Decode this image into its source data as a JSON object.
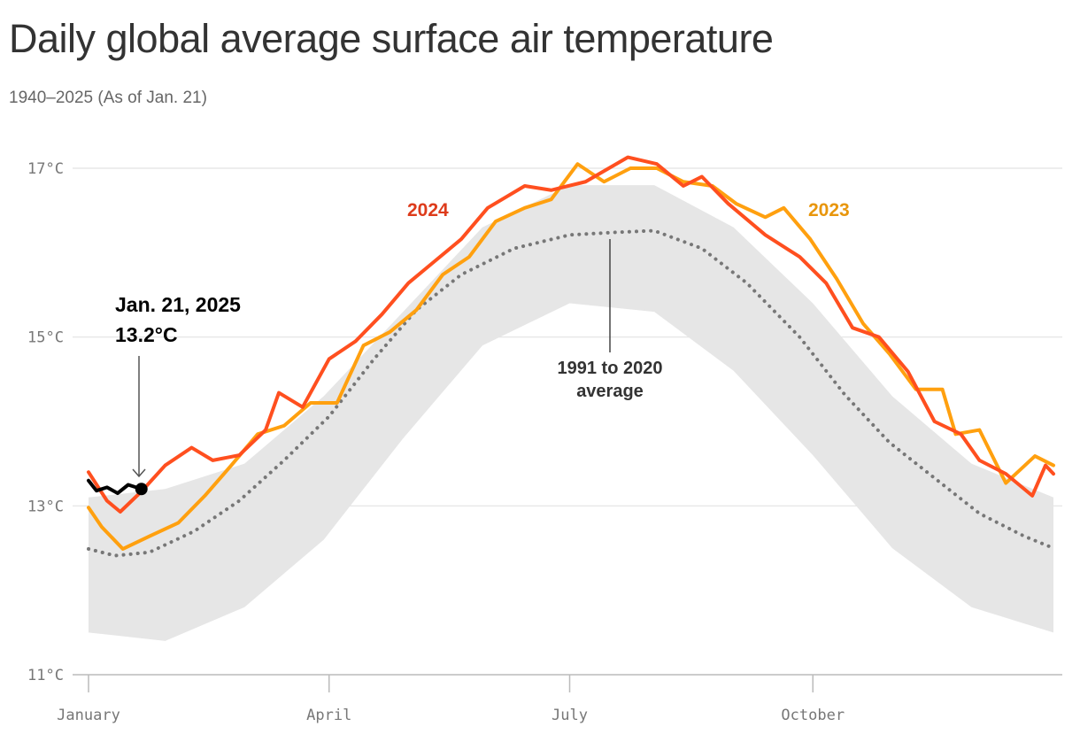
{
  "chart_data": {
    "type": "line",
    "title": "Daily global average surface air temperature",
    "subtitle": "1940–2025 (As of Jan. 21)",
    "xlabel": "",
    "ylabel": "",
    "x_unit": "day of year",
    "xlim": [
      1,
      366
    ],
    "ylim": [
      11,
      17
    ],
    "y_ticks": [
      {
        "v": 17,
        "label": "17°C"
      },
      {
        "v": 15,
        "label": "15°C"
      },
      {
        "v": 13,
        "label": "13°C"
      },
      {
        "v": 11,
        "label": "11°C"
      }
    ],
    "x_ticks": [
      {
        "v": 1,
        "label": "January"
      },
      {
        "v": 92,
        "label": "April"
      },
      {
        "v": 183,
        "label": "July"
      },
      {
        "v": 275,
        "label": "October"
      }
    ],
    "grid": true,
    "historical_band": {
      "color": "#e6e6e6",
      "x": [
        1,
        30,
        60,
        90,
        120,
        150,
        183,
        215,
        245,
        275,
        305,
        335,
        366
      ],
      "lower": [
        11.5,
        11.4,
        11.8,
        12.6,
        13.8,
        14.9,
        15.4,
        15.3,
        14.6,
        13.6,
        12.5,
        11.8,
        11.5
      ],
      "upper": [
        13.1,
        13.2,
        13.5,
        14.3,
        15.3,
        16.3,
        16.8,
        16.8,
        16.3,
        15.4,
        14.3,
        13.5,
        13.1
      ]
    },
    "series": [
      {
        "name": "1991 to 2020 average",
        "color": "#777777",
        "style": "dotted",
        "x": [
          1,
          11,
          24,
          41,
          58,
          75,
          92,
          109,
          125,
          142,
          162,
          183,
          200,
          215,
          233,
          250,
          270,
          287,
          304,
          321,
          338,
          355,
          366
        ],
        "y": [
          12.49,
          12.41,
          12.45,
          12.7,
          13.06,
          13.54,
          14.06,
          14.74,
          15.32,
          15.74,
          16.05,
          16.21,
          16.24,
          16.26,
          16.05,
          15.64,
          15.0,
          14.32,
          13.75,
          13.33,
          12.91,
          12.64,
          12.5
        ]
      },
      {
        "name": "2023",
        "color": "#ffa00f",
        "x": [
          1,
          6,
          14,
          24,
          35,
          45,
          55,
          65,
          75,
          85,
          95,
          105,
          115,
          125,
          135,
          145,
          155,
          166,
          176,
          186,
          196,
          206,
          216,
          226,
          237,
          246,
          257,
          264,
          274,
          284,
          294,
          304,
          314,
          324,
          329,
          338,
          348,
          359,
          366
        ],
        "y": [
          12.98,
          12.75,
          12.49,
          12.64,
          12.8,
          13.12,
          13.48,
          13.85,
          13.95,
          14.22,
          14.22,
          14.9,
          15.06,
          15.32,
          15.74,
          15.95,
          16.37,
          16.53,
          16.63,
          17.05,
          16.84,
          17.0,
          17.0,
          16.84,
          16.79,
          16.58,
          16.42,
          16.53,
          16.16,
          15.69,
          15.16,
          14.8,
          14.38,
          14.38,
          13.85,
          13.9,
          13.27,
          13.59,
          13.48
        ]
      },
      {
        "name": "2024",
        "color": "#ff4f1f",
        "x": [
          1,
          8,
          13,
          21,
          30,
          40,
          48,
          58,
          68,
          73,
          82,
          92,
          102,
          112,
          122,
          132,
          142,
          152,
          166,
          176,
          189,
          205,
          216,
          226,
          233,
          243,
          257,
          270,
          280,
          290,
          300,
          311,
          321,
          331,
          338,
          348,
          358,
          363,
          366
        ],
        "y": [
          13.4,
          13.06,
          12.93,
          13.17,
          13.48,
          13.69,
          13.54,
          13.6,
          13.9,
          14.34,
          14.17,
          14.74,
          14.95,
          15.27,
          15.64,
          15.9,
          16.16,
          16.53,
          16.79,
          16.74,
          16.84,
          17.13,
          17.05,
          16.79,
          16.9,
          16.58,
          16.21,
          15.95,
          15.64,
          15.11,
          15.0,
          14.59,
          14.0,
          13.85,
          13.54,
          13.38,
          13.12,
          13.48,
          13.38
        ]
      },
      {
        "name": "2025",
        "color": "#000000",
        "x": [
          1,
          4,
          8,
          12,
          16,
          21
        ],
        "y": [
          13.3,
          13.18,
          13.22,
          13.15,
          13.25,
          13.2
        ]
      }
    ],
    "annotations": {
      "y2024": {
        "text": "2024",
        "color": "#dd3b1b"
      },
      "y2023": {
        "text": "2023",
        "color": "#e8960c"
      },
      "latest": {
        "line1": "Jan. 21, 2025",
        "line2": "13.2°C",
        "x": 21,
        "y": 13.2
      },
      "average": {
        "line1": "1991 to 2020",
        "line2": "average"
      }
    }
  }
}
